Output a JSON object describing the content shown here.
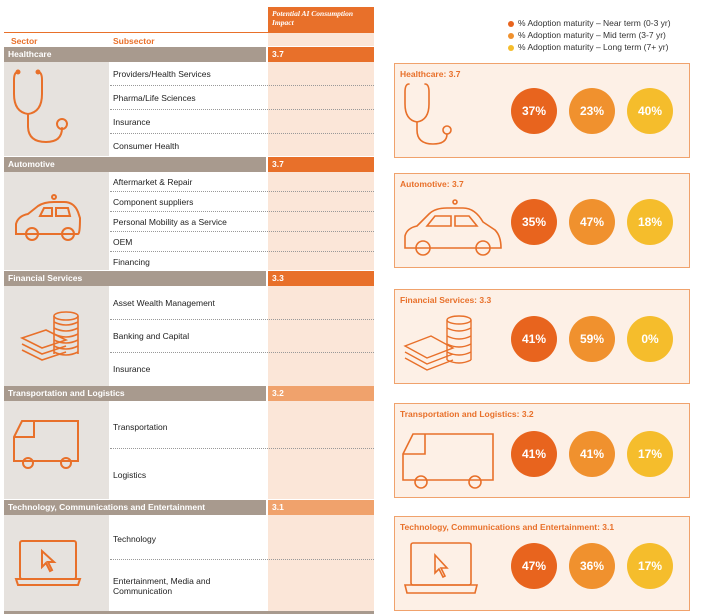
{
  "table": {
    "impact_header": "Potential AI Consumption Impact",
    "col_sector": "Sector",
    "col_subsector": "Subsector",
    "sectors": [
      {
        "name": "Healthcare",
        "impact": "3.7",
        "icon": "stethoscope-icon",
        "subsectors": [
          "Providers/Health Services",
          "Pharma/Life Sciences",
          "Insurance",
          "Consumer Health"
        ]
      },
      {
        "name": "Automotive",
        "impact": "3.7",
        "icon": "car-icon",
        "subsectors": [
          "Aftermarket & Repair",
          "Component suppliers",
          "Personal Mobility as a Service",
          "OEM",
          "Financing"
        ]
      },
      {
        "name": "Financial Services",
        "impact": "3.3",
        "icon": "coins-cash-icon",
        "subsectors": [
          "Asset Wealth Management",
          "Banking and Capital",
          "Insurance"
        ]
      },
      {
        "name": "Transportation and Logistics",
        "impact": "3.2",
        "icon": "van-icon",
        "subsectors": [
          "Transportation",
          "Logistics"
        ]
      },
      {
        "name": "Technology, Communications and Entertainment",
        "impact": "3.1",
        "icon": "laptop-icon",
        "subsectors": [
          "Technology",
          "Entertainment, Media and\nCommunication"
        ]
      }
    ]
  },
  "legend": [
    {
      "label": "% Adoption maturity – Near term (0-3 yr)",
      "color": "#e8641e"
    },
    {
      "label": "% Adoption maturity – Mid term (3-7 yr)",
      "color": "#f0912e"
    },
    {
      "label": "% Adoption maturity – Long term (7+ yr)",
      "color": "#f5bd2c"
    }
  ],
  "chart_data": {
    "type": "table",
    "series": [
      {
        "name": "% Adoption maturity – Near term (0-3 yr)",
        "values": [
          37,
          35,
          41,
          41,
          47
        ]
      },
      {
        "name": "% Adoption maturity – Mid term (3-7 yr)",
        "values": [
          23,
          47,
          59,
          41,
          36
        ]
      },
      {
        "name": "% Adoption maturity – Long term (7+ yr)",
        "values": [
          40,
          18,
          0,
          17,
          17
        ]
      }
    ],
    "categories": [
      "Healthcare",
      "Automotive",
      "Financial Services",
      "Transportation and Logistics",
      "Technology, Communications and Entertainment"
    ],
    "impact": [
      3.7,
      3.7,
      3.3,
      3.2,
      3.1
    ]
  },
  "panels": [
    {
      "title": "Healthcare: 3.7",
      "values": [
        "37%",
        "23%",
        "40%"
      ]
    },
    {
      "title": "Automotive: 3.7",
      "values": [
        "35%",
        "47%",
        "18%"
      ]
    },
    {
      "title": "Financial Services: 3.3",
      "values": [
        "41%",
        "59%",
        "0%"
      ]
    },
    {
      "title": "Transportation and Logistics: 3.2",
      "values": [
        "41%",
        "41%",
        "17%"
      ]
    },
    {
      "title": "Technology, Communications and Entertainment: 3.1",
      "values": [
        "47%",
        "36%",
        "17%"
      ]
    }
  ]
}
